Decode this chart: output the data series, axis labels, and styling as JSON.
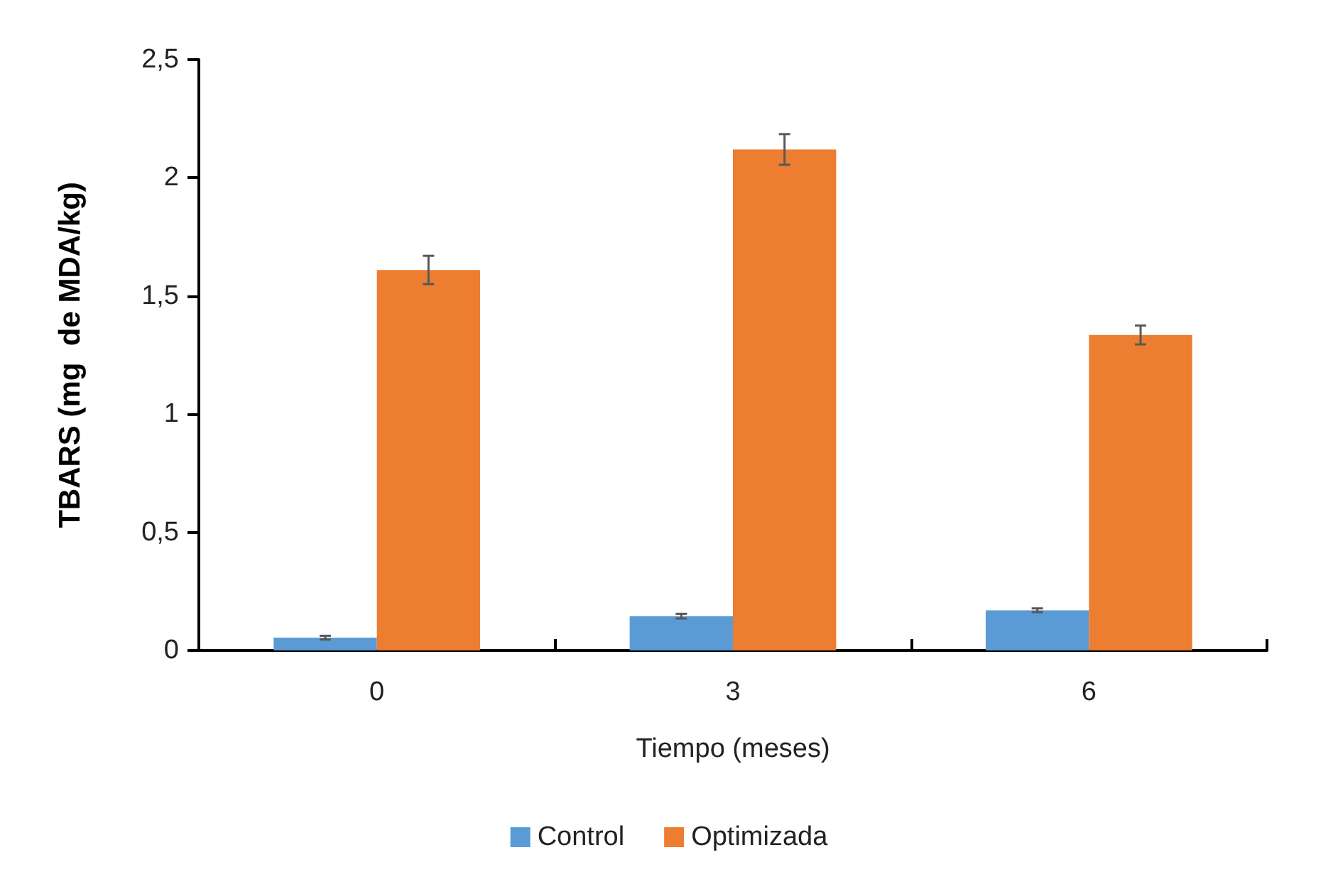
{
  "chart_data": {
    "type": "bar",
    "xlabel": "Tiempo (meses)",
    "ylabel": "TBARS (mg  de MDA/kg)",
    "categories": [
      "0",
      "3",
      "6"
    ],
    "series": [
      {
        "name": "Control",
        "color": "#5b9bd5",
        "values": [
          0.054,
          0.145,
          0.17
        ],
        "errors": [
          0.008,
          0.01,
          0.008
        ]
      },
      {
        "name": "Optimizada",
        "color": "#ed7d31",
        "values": [
          1.61,
          2.12,
          1.335
        ],
        "errors": [
          0.06,
          0.065,
          0.04
        ]
      }
    ],
    "ylim": [
      0,
      2.5
    ],
    "yticks": [
      0,
      {
        "value": 0.5,
        "label": "0,5"
      },
      1,
      {
        "value": 1.5,
        "label": "1,5"
      },
      2,
      {
        "value": 2.5,
        "label": "2,5"
      }
    ],
    "grid": false,
    "legend": "bottom"
  }
}
